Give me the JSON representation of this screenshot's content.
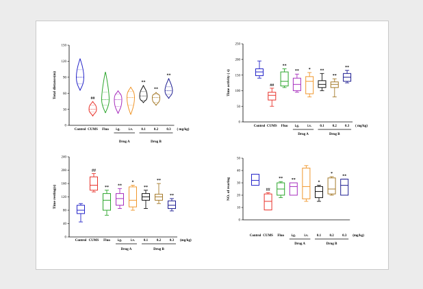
{
  "groups": [
    {
      "name": "Control",
      "color": "#2323c8"
    },
    {
      "name": "CUMS",
      "color": "#e8322a"
    },
    {
      "name": "Fluo",
      "color": "#2aa52a"
    },
    {
      "name": "i.g.",
      "color": "#a62bbd"
    },
    {
      "name": "i.v.",
      "color": "#f0962a"
    },
    {
      "name": "0.1",
      "color": "#111111"
    },
    {
      "name": "0.2",
      "color": "#a57a2a"
    },
    {
      "name": "0.3",
      "color": "#1a1a90"
    }
  ],
  "drug_labels": {
    "a": "Drug A",
    "b": "Drug B"
  },
  "chart_data": [
    {
      "type": "violin",
      "ylabel": "Total distance(m)",
      "ylim": [
        0,
        150
      ],
      "yticks": [
        0,
        30,
        60,
        90,
        120,
        150
      ],
      "unit": "( mg/kg)",
      "categories": [
        "Control",
        "CUMS",
        "Fluo",
        "i.g.",
        "i.v.",
        "0.1",
        "0.2",
        "0.3"
      ],
      "stats": [
        {
          "min": 65,
          "q1": 78,
          "med": 90,
          "q3": 104,
          "max": 125
        },
        {
          "min": 17,
          "q1": 25,
          "med": 30,
          "q3": 38,
          "max": 45
        },
        {
          "min": 23,
          "q1": 38,
          "med": 48,
          "q3": 62,
          "max": 100
        },
        {
          "min": 22,
          "q1": 35,
          "med": 48,
          "q3": 58,
          "max": 65
        },
        {
          "min": 20,
          "q1": 38,
          "med": 52,
          "q3": 63,
          "max": 72
        },
        {
          "min": 42,
          "q1": 47,
          "med": 55,
          "q3": 63,
          "max": 75
        },
        {
          "min": 37,
          "q1": 43,
          "med": 52,
          "q3": 58,
          "max": 62
        },
        {
          "min": 50,
          "q1": 58,
          "med": 65,
          "q3": 72,
          "max": 88
        }
      ],
      "significance": [
        "",
        "##",
        "",
        "",
        "",
        "**",
        "**",
        "**"
      ]
    },
    {
      "type": "box",
      "ylabel": "Time activity ( s)",
      "ylim": [
        0,
        250
      ],
      "yticks": [
        0,
        50,
        100,
        150,
        200,
        250
      ],
      "unit": "( mg/kg)",
      "categories": [
        "Control",
        "CUMS",
        "Fluo",
        "i.g.",
        "i.v.",
        "0.1",
        "0.2",
        "0.3"
      ],
      "stats": [
        {
          "min": 140,
          "q1": 148,
          "med": 160,
          "q3": 170,
          "max": 195
        },
        {
          "min": 50,
          "q1": 70,
          "med": 85,
          "q3": 95,
          "max": 108
        },
        {
          "min": 110,
          "q1": 115,
          "med": 130,
          "q3": 160,
          "max": 170
        },
        {
          "min": 95,
          "q1": 100,
          "med": 120,
          "q3": 140,
          "max": 153
        },
        {
          "min": 80,
          "q1": 90,
          "med": 130,
          "q3": 145,
          "max": 158
        },
        {
          "min": 100,
          "q1": 110,
          "med": 120,
          "q3": 132,
          "max": 155
        },
        {
          "min": 80,
          "q1": 110,
          "med": 120,
          "q3": 128,
          "max": 138
        },
        {
          "min": 125,
          "q1": 130,
          "med": 143,
          "q3": 155,
          "max": 165
        }
      ],
      "significance": [
        "",
        "##",
        "**",
        "**",
        "*",
        "**",
        "**",
        "**"
      ]
    },
    {
      "type": "box",
      "ylabel": "Time resting(s)",
      "ylim": [
        0,
        240
      ],
      "yticks": [
        0,
        40,
        80,
        120,
        160,
        200,
        240
      ],
      "unit": "(mg/kg)",
      "categories": [
        "Control",
        "CUMS",
        "Fluo",
        "i.g.",
        "i.v.",
        "0.1",
        "0.2",
        "0.3"
      ],
      "stats": [
        {
          "min": 45,
          "q1": 70,
          "med": 80,
          "q3": 95,
          "max": 100
        },
        {
          "min": 135,
          "q1": 140,
          "med": 155,
          "q3": 180,
          "max": 190
        },
        {
          "min": 65,
          "q1": 80,
          "med": 110,
          "q3": 130,
          "max": 140
        },
        {
          "min": 85,
          "q1": 95,
          "med": 115,
          "q3": 130,
          "max": 145
        },
        {
          "min": 80,
          "q1": 90,
          "med": 110,
          "q3": 150,
          "max": 155
        },
        {
          "min": 85,
          "q1": 110,
          "med": 120,
          "q3": 130,
          "max": 140
        },
        {
          "min": 100,
          "q1": 110,
          "med": 120,
          "q3": 128,
          "max": 160
        },
        {
          "min": 78,
          "q1": 85,
          "med": 95,
          "q3": 108,
          "max": 115
        }
      ],
      "significance": [
        "",
        "##",
        "**",
        "**",
        "*",
        "**",
        "**",
        "**"
      ]
    },
    {
      "type": "box",
      "ylabel": "NO. of rearing",
      "ylim": [
        0,
        50
      ],
      "yticks": [
        0,
        10,
        20,
        30,
        40,
        50
      ],
      "unit": "(mg/kg)",
      "categories": [
        "Control",
        "CUMS",
        "Fluo",
        "i.g.",
        "i.v.",
        "0.1",
        "0.2",
        "0.3"
      ],
      "stats": [
        {
          "min": 28,
          "q1": 28,
          "med": 32,
          "q3": 37,
          "max": 37
        },
        {
          "min": 8,
          "q1": 8,
          "med": 15,
          "q3": 21,
          "max": 22
        },
        {
          "min": 18,
          "q1": 20,
          "med": 25,
          "q3": 30,
          "max": 31
        },
        {
          "min": 20,
          "q1": 20,
          "med": 27,
          "q3": 30,
          "max": 30
        },
        {
          "min": 15,
          "q1": 17,
          "med": 27,
          "q3": 42,
          "max": 44
        },
        {
          "min": 15,
          "q1": 18,
          "med": 23,
          "q3": 27,
          "max": 28
        },
        {
          "min": 20,
          "q1": 21,
          "med": 25,
          "q3": 34,
          "max": 35
        },
        {
          "min": 20,
          "q1": 20,
          "med": 28,
          "q3": 33,
          "max": 33
        }
      ],
      "significance": [
        "",
        "##",
        "**",
        "**",
        "",
        "*",
        "*",
        "**"
      ]
    }
  ]
}
